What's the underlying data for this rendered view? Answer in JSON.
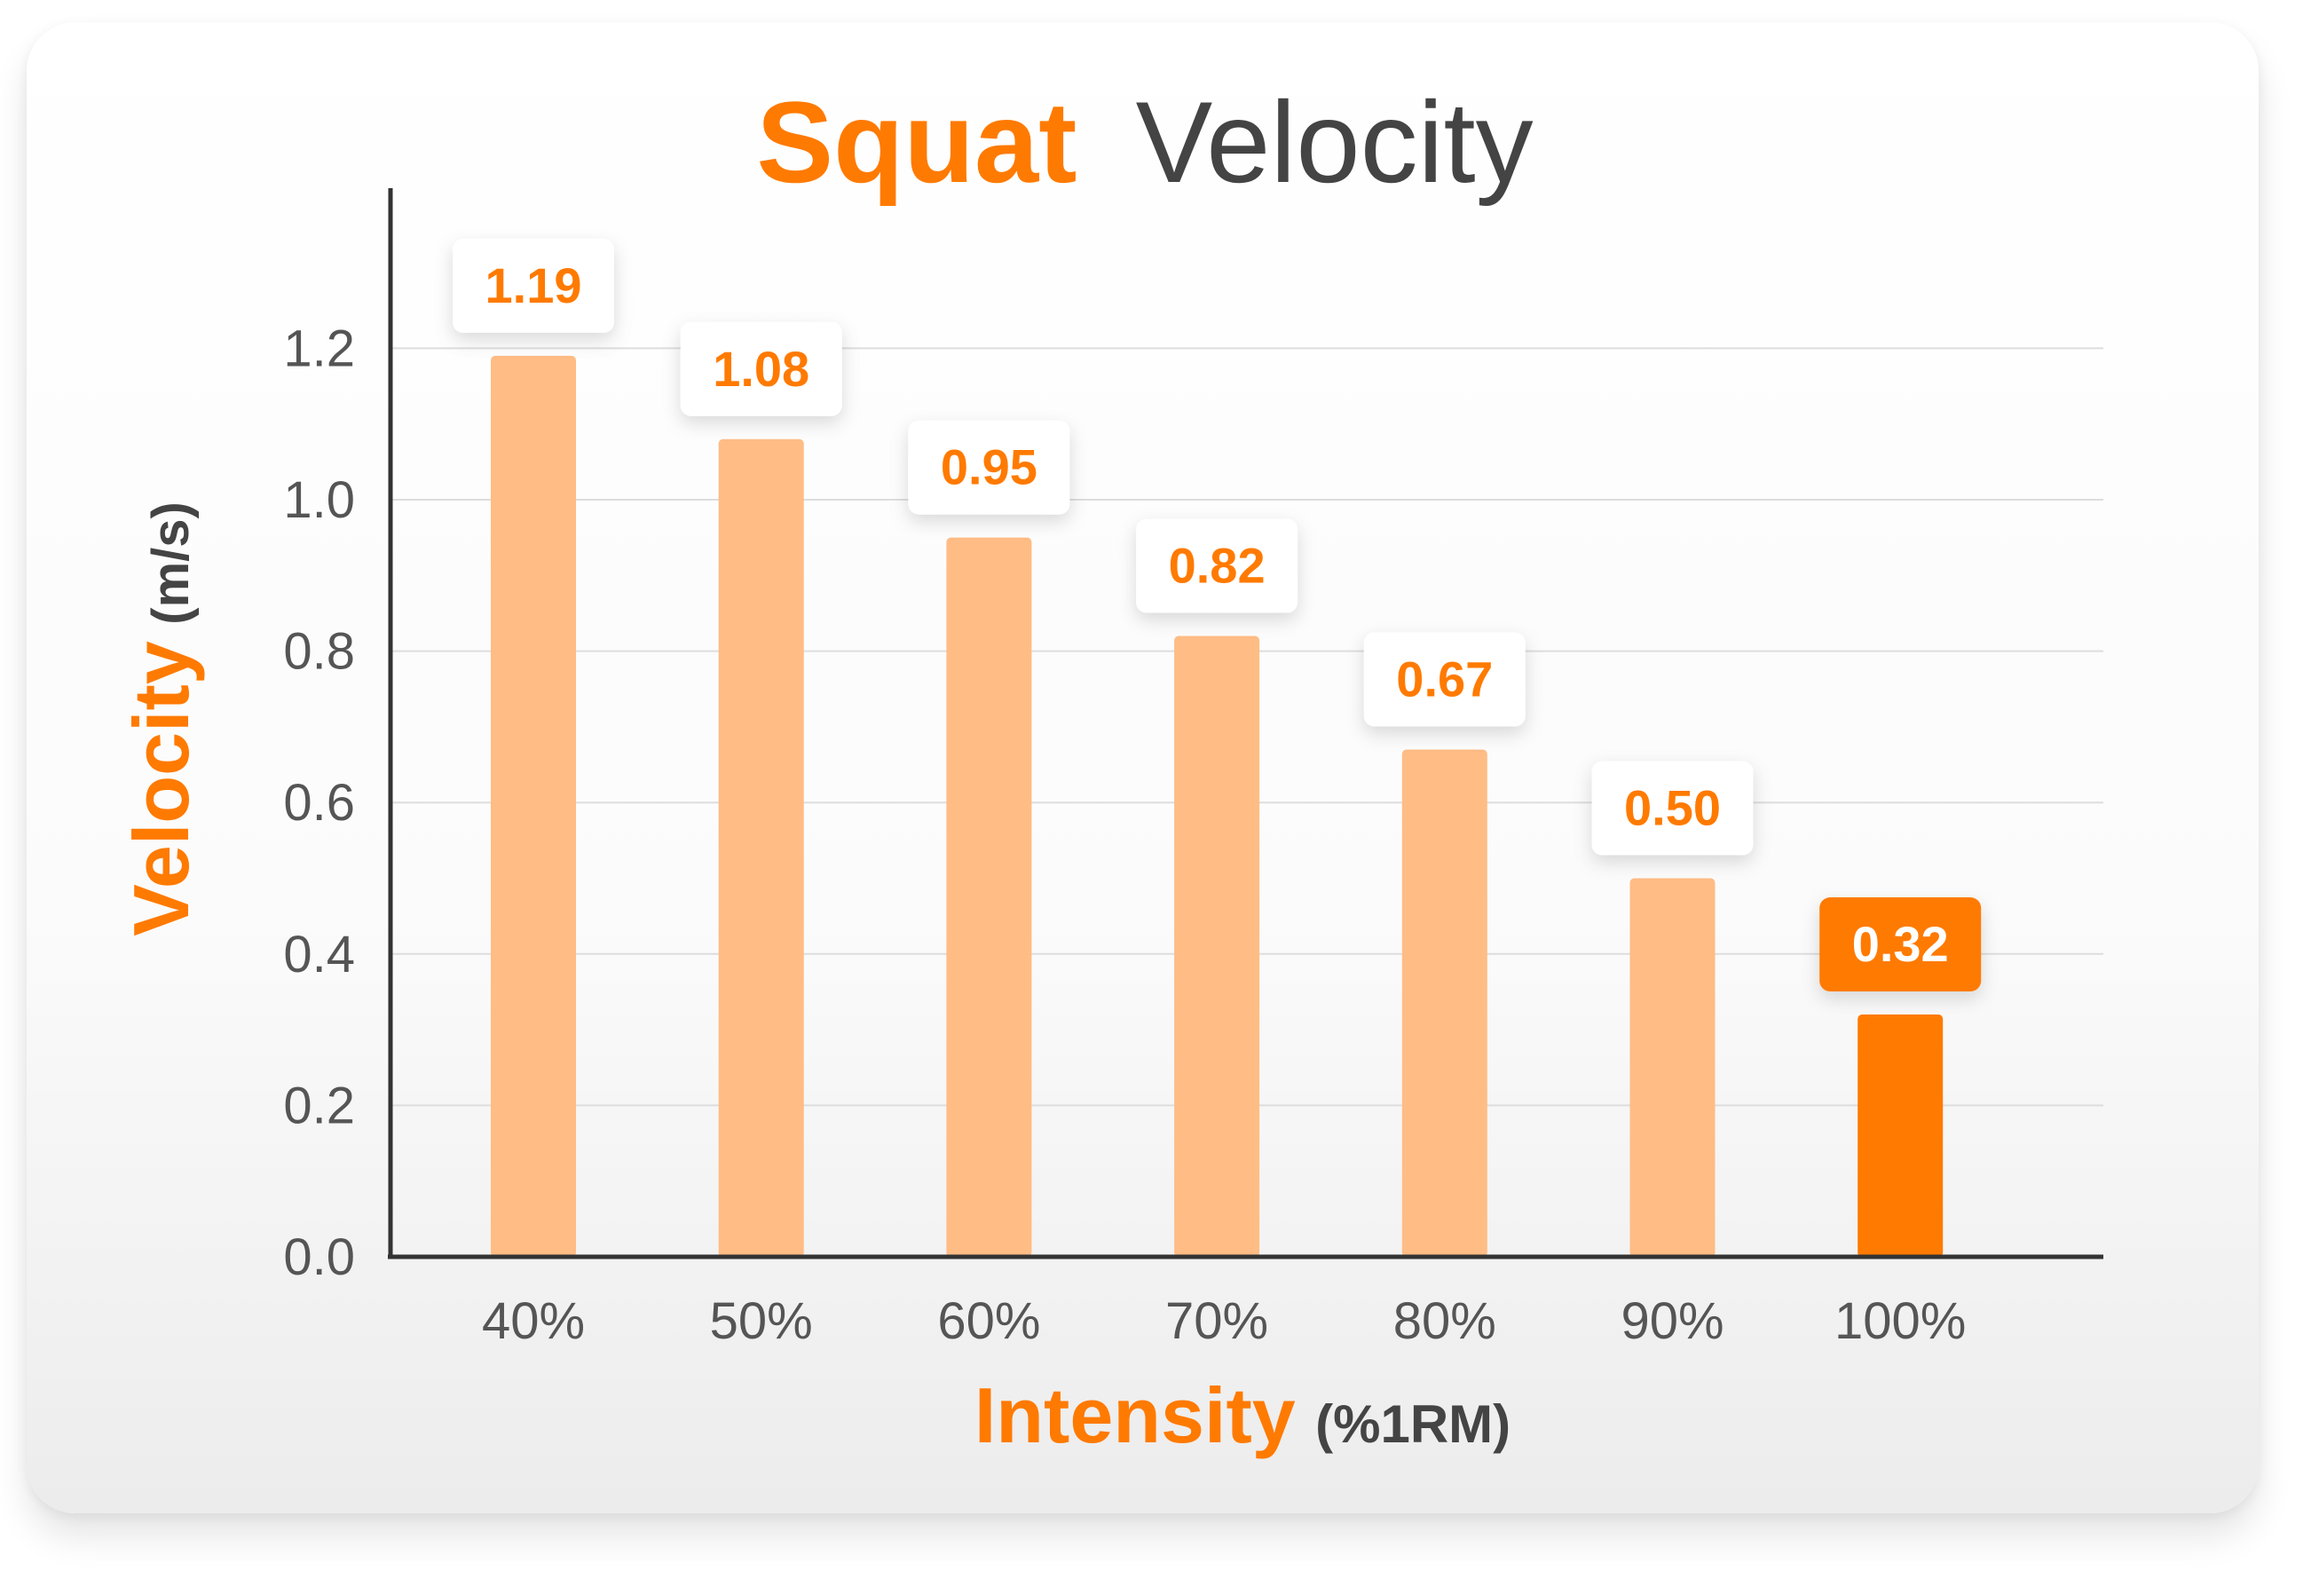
{
  "chart_data": {
    "type": "bar",
    "title": {
      "highlight": "Squat",
      "rest": "Velocity"
    },
    "xlabel": {
      "main": "Intensity",
      "unit": "(%1RM)"
    },
    "ylabel": {
      "main": "Velocity",
      "unit": "(m/s)"
    },
    "categories": [
      "40%",
      "50%",
      "60%",
      "70%",
      "80%",
      "90%",
      "100%"
    ],
    "values": [
      1.19,
      1.08,
      0.95,
      0.82,
      0.67,
      0.5,
      0.32
    ],
    "value_labels": [
      "1.19",
      "1.08",
      "0.95",
      "0.82",
      "0.67",
      "0.50",
      "0.32"
    ],
    "ylim": [
      0,
      1.4
    ],
    "yticks": [
      "0.0",
      "0.2",
      "0.4",
      "0.6",
      "0.8",
      "1.0",
      "1.2"
    ],
    "grid": true,
    "highlight_index": 6,
    "colors": {
      "accent": "#FF7A00",
      "bar": "#FFBC85",
      "text_dark": "#444444",
      "tick": "#555555",
      "grid": "#dddddd",
      "axis": "#333333"
    }
  }
}
